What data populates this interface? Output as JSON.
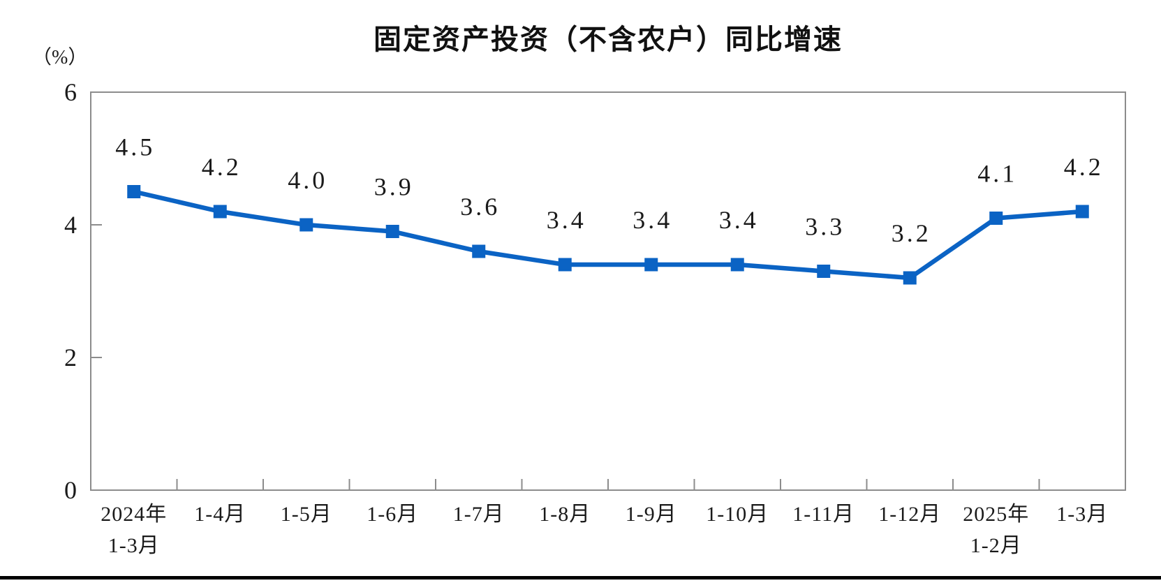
{
  "page": {
    "background": "#FFFFFF",
    "bottom_bar_color": "#000000"
  },
  "chart_data": {
    "type": "line",
    "title": "固定资产投资（不含农户）同比增速",
    "unit_label": "（%）",
    "categories": [
      "2024年\n1-3月",
      "1-4月",
      "1-5月",
      "1-6月",
      "1-7月",
      "1-8月",
      "1-9月",
      "1-10月",
      "1-11月",
      "1-12月",
      "2025年\n1-2月",
      "1-3月"
    ],
    "values": [
      4.5,
      4.2,
      4.0,
      3.9,
      3.6,
      3.4,
      3.4,
      3.4,
      3.3,
      3.2,
      4.1,
      4.2
    ],
    "data_labels": [
      "4.5",
      "4.2",
      "4.0",
      "3.9",
      "3.6",
      "3.4",
      "3.4",
      "3.4",
      "3.3",
      "3.2",
      "4.1",
      "4.2"
    ],
    "xlabel": "",
    "ylabel": "",
    "ylim": [
      0,
      6
    ],
    "y_ticks": [
      0,
      2,
      4,
      6
    ],
    "grid": false,
    "legend": "none",
    "marker_shape": "square",
    "line_color": "#0B63C4",
    "axis_color": "#8C8C8C",
    "label_color": "#1A1A1A"
  }
}
